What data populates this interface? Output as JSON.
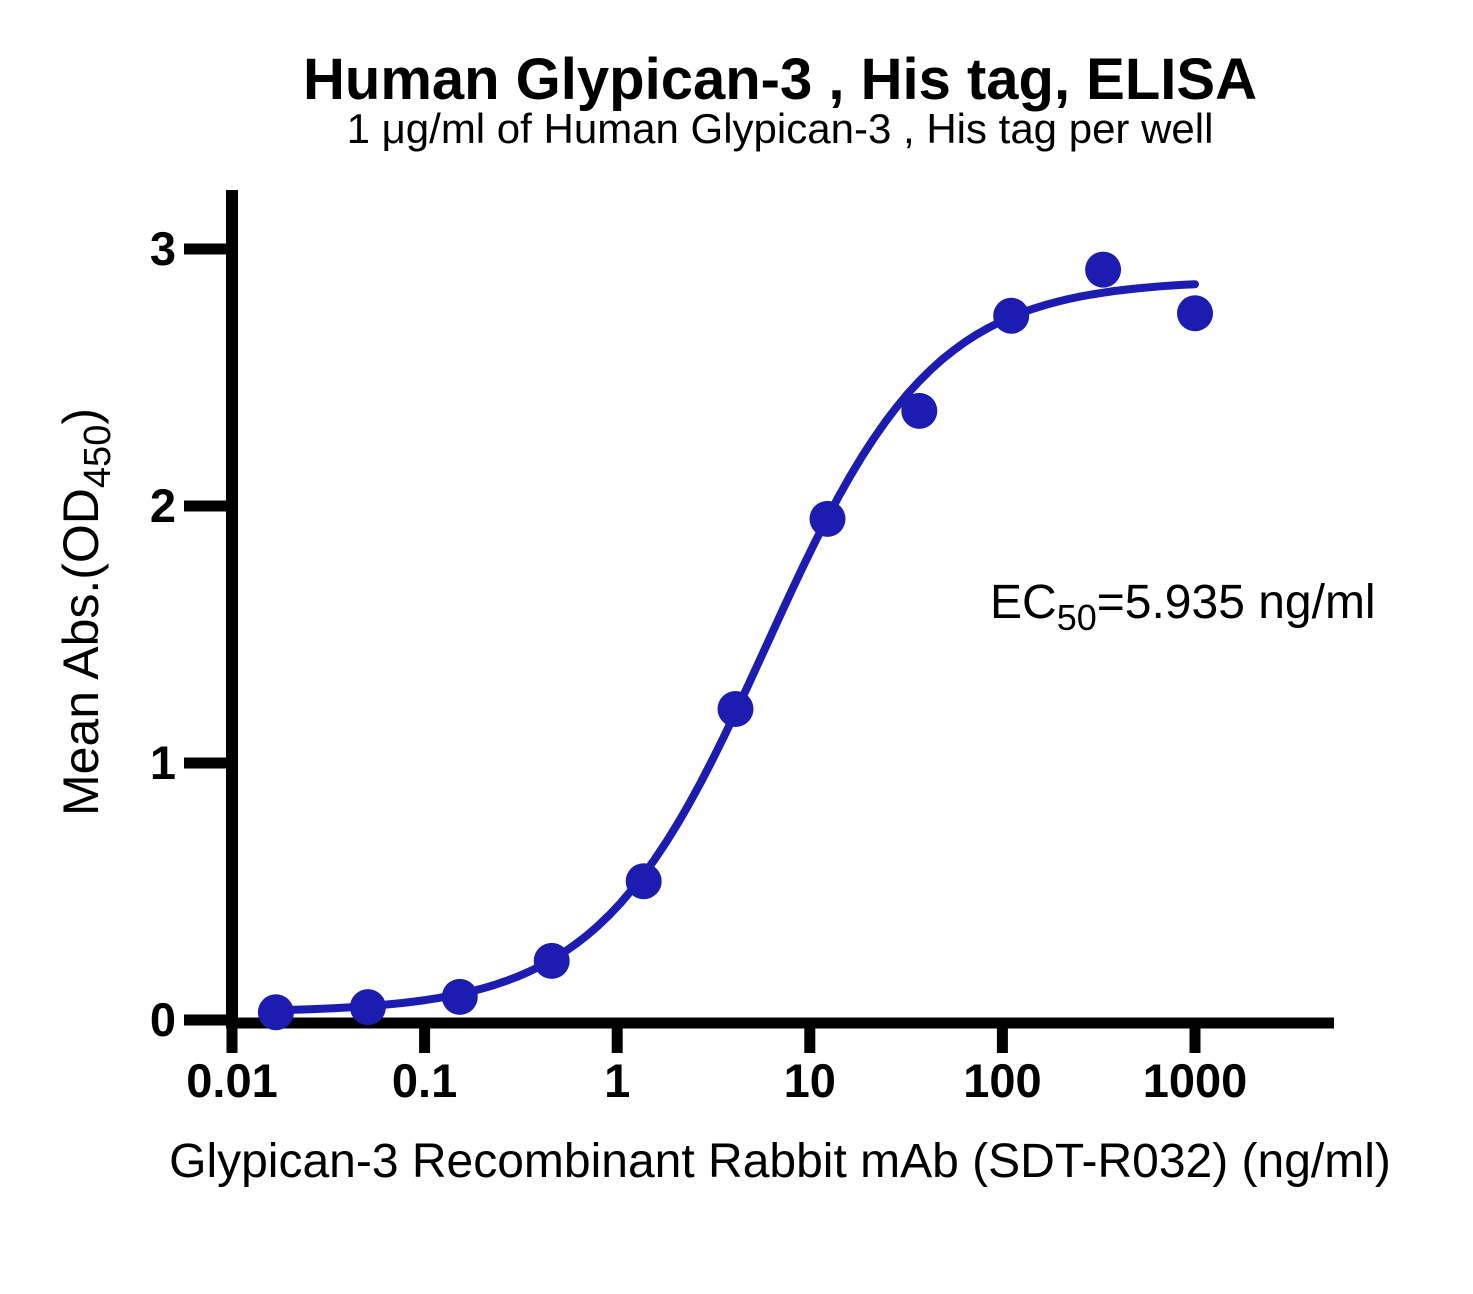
{
  "chart_data": {
    "type": "scatter",
    "title": "Human Glypican-3 , His tag, ELISA",
    "subtitle": "1 μg/ml of Human Glypican-3 , His tag per well",
    "xlabel": "Glypican-3 Recombinant Rabbit mAb (SDT-R032) (ng/ml)",
    "ylabel": {
      "prefix": "Mean Abs.(OD",
      "sub": "450",
      "suffix": ")"
    },
    "annotation": {
      "prefix": "EC",
      "sub": "50",
      "suffix": "=5.935 ng/ml"
    },
    "x_scale": "log10",
    "grid": false,
    "legend": "none",
    "xlim": [
      0.01,
      5000
    ],
    "ylim": [
      0,
      3.25
    ],
    "x_ticks": [
      0.01,
      0.1,
      1,
      10,
      100,
      1000
    ],
    "x_tick_labels": [
      "0.01",
      "0.1",
      "1",
      "10",
      "100",
      "1000"
    ],
    "y_ticks": [
      0,
      1,
      2,
      3
    ],
    "y_tick_labels": [
      "0",
      "1",
      "2",
      "3"
    ],
    "series": [
      {
        "name": "Mean Abs.(OD450)",
        "x": [
          0.0169,
          0.0508,
          0.1524,
          0.4572,
          1.372,
          4.115,
          12.35,
          37.04,
          111.1,
          333.3,
          1000
        ],
        "y": [
          0.03,
          0.05,
          0.09,
          0.23,
          0.54,
          1.21,
          1.95,
          2.37,
          2.74,
          2.92,
          2.75
        ]
      }
    ],
    "fit_curve": {
      "model": "4PL",
      "bottom": 0.03,
      "top": 2.88,
      "ec50": 5.935,
      "hill": 1.0,
      "x_start": 0.0169,
      "x_end": 1000
    },
    "marker_color": "#1c1cb0",
    "line_color": "#1c1cb0",
    "axis_color": "#000000"
  }
}
